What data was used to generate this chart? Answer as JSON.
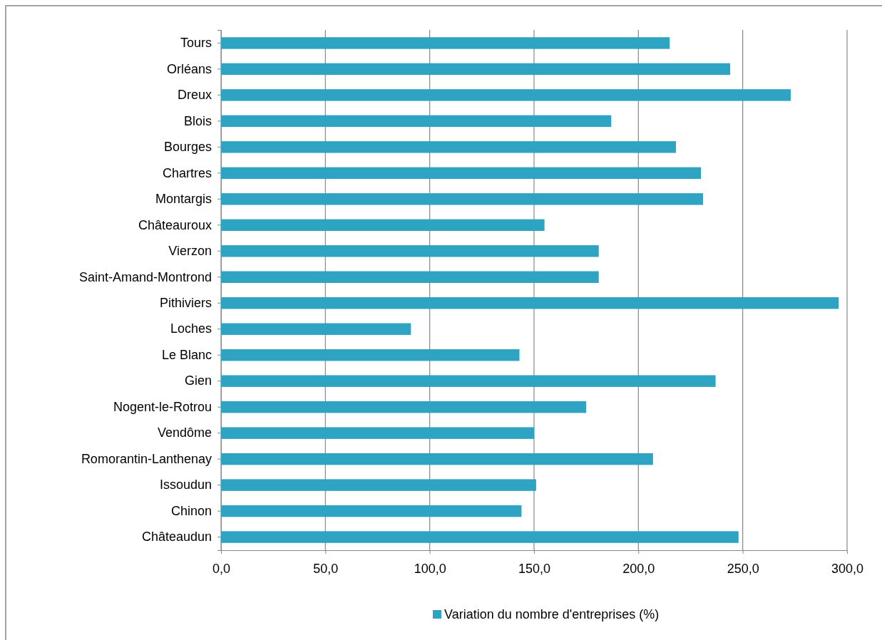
{
  "chart_data": {
    "type": "bar",
    "orientation": "horizontal",
    "categories": [
      "Tours",
      "Orléans",
      "Dreux",
      "Blois",
      "Bourges",
      "Chartres",
      "Montargis",
      "Châteauroux",
      "Vierzon",
      "Saint-Amand-Montrond",
      "Pithiviers",
      "Loches",
      "Le Blanc",
      "Gien",
      "Nogent-le-Rotrou",
      "Vendôme",
      "Romorantin-Lanthenay",
      "Issoudun",
      "Chinon",
      "Châteaudun"
    ],
    "series": [
      {
        "name": "Variation du nombre d'entreprises (%)",
        "color": "#2ea3c2",
        "values": [
          215,
          244,
          273,
          187,
          218,
          230,
          231,
          155,
          181,
          181,
          296,
          91,
          143,
          237,
          175,
          150,
          207,
          151,
          144,
          248
        ]
      }
    ],
    "xlim": [
      0,
      300
    ],
    "xticks": [
      {
        "value": 0,
        "label": "0,0"
      },
      {
        "value": 50,
        "label": "50,0"
      },
      {
        "value": 100,
        "label": "100,0"
      },
      {
        "value": 150,
        "label": "150,0"
      },
      {
        "value": 200,
        "label": "200,0"
      },
      {
        "value": 250,
        "label": "250,0"
      },
      {
        "value": 300,
        "label": "300,0"
      }
    ],
    "grid": "x",
    "legend": "bottom"
  }
}
